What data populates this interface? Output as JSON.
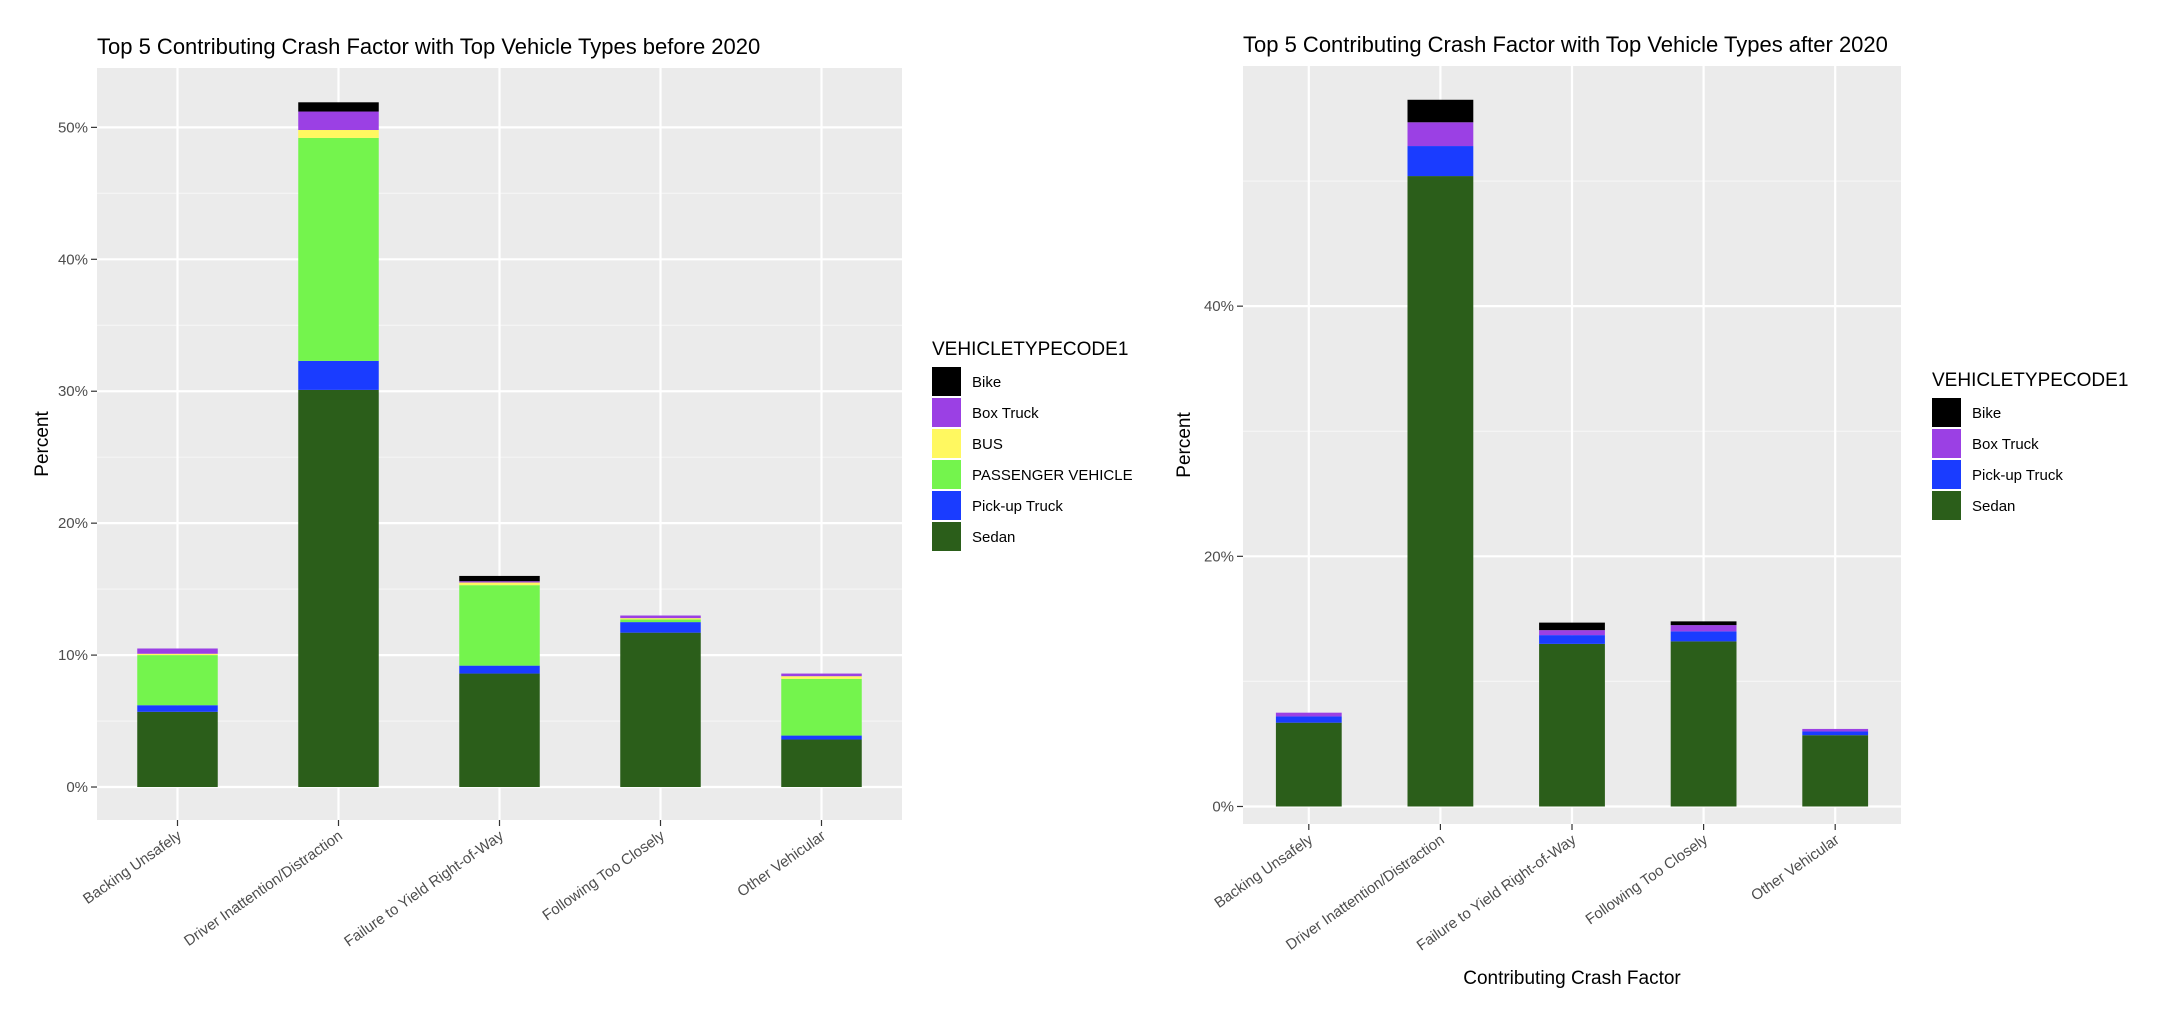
{
  "chart_data": [
    {
      "type": "bar",
      "stacked": true,
      "title": "Top 5 Contributing Crash Factor with Top Vehicle Types before 2020",
      "xlabel": "",
      "ylabel": "Percent",
      "ylim": [
        -2.5,
        54.5
      ],
      "yticks": [
        0,
        10,
        20,
        30,
        40,
        50
      ],
      "ytick_labels": [
        "0%",
        "10%",
        "20%",
        "30%",
        "40%",
        "50%"
      ],
      "grid": true,
      "legend_position": "right",
      "legend_title": "VEHICLETYPECODE1",
      "categories": [
        "Backing Unsafely",
        "Driver Inattention/Distraction",
        "Failure to Yield Right-of-Way",
        "Following Too Closely",
        "Other Vehicular"
      ],
      "series": [
        {
          "name": "Sedan",
          "color": "#2b5e1a",
          "values": [
            5.7,
            30.1,
            8.6,
            11.7,
            3.6
          ]
        },
        {
          "name": "Pick-up Truck",
          "color": "#1a3cff",
          "values": [
            0.5,
            2.2,
            0.6,
            0.8,
            0.3
          ]
        },
        {
          "name": "PASSENGER VEHICLE",
          "color": "#74f44d",
          "values": [
            3.8,
            16.9,
            6.1,
            0.2,
            4.3
          ]
        },
        {
          "name": "BUS",
          "color": "#fff860",
          "values": [
            0.1,
            0.6,
            0.2,
            0.1,
            0.2
          ]
        },
        {
          "name": "Box Truck",
          "color": "#9b40e4",
          "values": [
            0.4,
            1.4,
            0.1,
            0.2,
            0.2
          ]
        },
        {
          "name": "Bike",
          "color": "#000000",
          "values": [
            0.0,
            0.7,
            0.4,
            0.0,
            0.0
          ]
        }
      ],
      "legend_order": [
        "Bike",
        "Box Truck",
        "BUS",
        "PASSENGER VEHICLE",
        "Pick-up Truck",
        "Sedan"
      ]
    },
    {
      "type": "bar",
      "stacked": true,
      "title": "Top 5 Contributing Crash Factor with Top Vehicle Types after 2020",
      "xlabel": "Contributing Crash Factor",
      "ylabel": "Percent",
      "ylim": [
        -1.4,
        59.2
      ],
      "yticks": [
        0,
        20,
        40
      ],
      "ytick_labels": [
        "0%",
        "20%",
        "40%"
      ],
      "grid": true,
      "legend_position": "right",
      "legend_title": "VEHICLETYPECODE1",
      "categories": [
        "Backing Unsafely",
        "Driver Inattention/Distraction",
        "Failure to Yield Right-of-Way",
        "Following Too Closely",
        "Other Vehicular"
      ],
      "series": [
        {
          "name": "Sedan",
          "color": "#2b5e1a",
          "values": [
            6.7,
            50.4,
            13.0,
            13.2,
            5.7
          ]
        },
        {
          "name": "Pick-up Truck",
          "color": "#1a3cff",
          "values": [
            0.5,
            2.4,
            0.7,
            0.8,
            0.3
          ]
        },
        {
          "name": "Box Truck",
          "color": "#9b40e4",
          "values": [
            0.3,
            1.9,
            0.4,
            0.5,
            0.2
          ]
        },
        {
          "name": "Bike",
          "color": "#000000",
          "values": [
            0.0,
            1.8,
            0.6,
            0.3,
            0.0
          ]
        }
      ],
      "legend_order": [
        "Bike",
        "Box Truck",
        "Pick-up Truck",
        "Sedan"
      ]
    }
  ]
}
